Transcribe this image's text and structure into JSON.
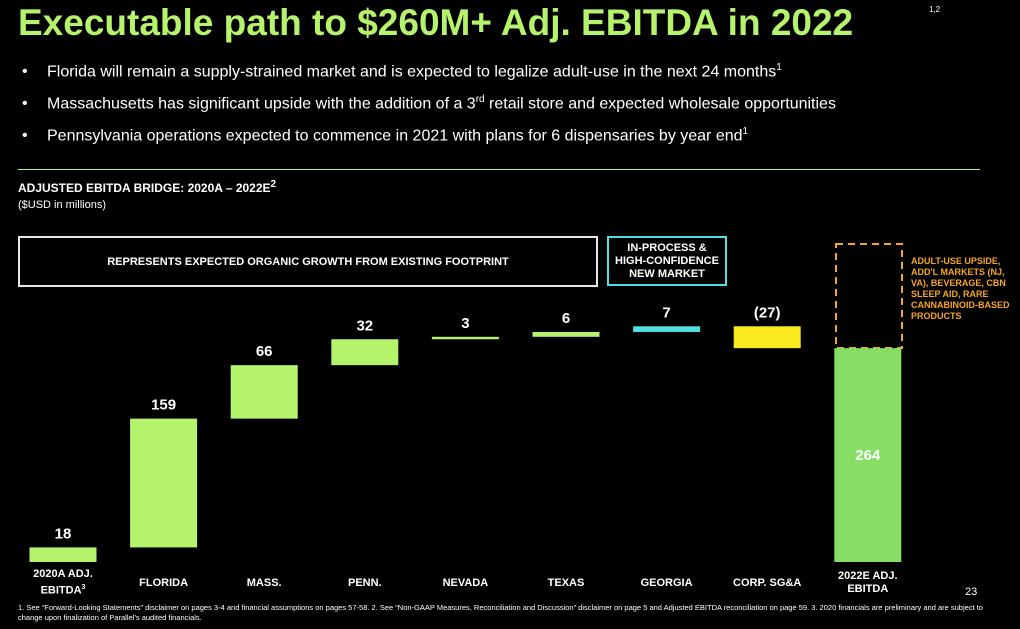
{
  "title": "Executable path to $260M+ Adj. EBITDA in 2022",
  "title_sup": "1,2",
  "bullets": [
    [
      {
        "text": "Florida will remain a supply-strained market and is expected to legalize adult-use in the next 24 months"
      },
      {
        "sup": "1"
      }
    ],
    [
      {
        "text": "Massachusetts has significant upside with the addition of a 3"
      },
      {
        "sup": "rd"
      },
      {
        "text": " retail store and expected wholesale opportunities"
      }
    ],
    [
      {
        "text": "Pennsylvania operations expected to commence in 2021 with plans for 6 dispensaries by year end"
      },
      {
        "sup": "1"
      }
    ]
  ],
  "chart_data": {
    "type": "waterfall",
    "title": "ADJUSTED EBITDA BRIDGE: 2020A – 2022E",
    "title_sup": "2",
    "subtitle": "($USD in millions)",
    "categories": [
      "2020A ADJ. EBITDA",
      "FLORIDA",
      "MASS.",
      "PENN.",
      "NEVADA",
      "TEXAS",
      "GEORGIA",
      "CORP. SG&A",
      "2022E ADJ. EBITDA"
    ],
    "category_sup": "3",
    "values": [
      18,
      159,
      66,
      32,
      3,
      6,
      7,
      -27,
      264
    ],
    "value_labels": [
      null,
      null,
      null,
      null,
      null,
      null,
      null,
      "(27)",
      null
    ],
    "is_total": [
      false,
      false,
      false,
      false,
      false,
      false,
      false,
      false,
      true
    ],
    "colors": [
      "#b6f36c",
      "#b6f36c",
      "#b6f36c",
      "#b6f36c",
      "#b6f36c",
      "#b6f36c",
      "#4fe0df",
      "#f9e91f",
      "#86df64"
    ],
    "annotations": {
      "organic": "REPRESENTS EXPECTED ORGANIC GROWTH FROM EXISTING FOOTPRINT",
      "in_process": "IN-PROCESS & HIGH-CONFIDENCE NEW MARKET",
      "upside": "ADULT-USE UPSIDE, ADD'L MARKETS (NJ, VA), BEVERAGE, CBN SLEEP AID, RARE CANNABINOID-BASED PRODUCTS"
    }
  },
  "page_number": "23",
  "footnote": "1. See “Forward-Looking Statements” disclaimer on pages 3-4 and financial assumptions on pages 57-58. 2. See “Non-GAAP Measures, Reconciliation and Discussion” disclaimer on page 5 and Adjusted EBITDA reconciliation on page 59. 3. 2020 financials are preliminary and are subject to change upon finalization of Parallel’s audited financials."
}
